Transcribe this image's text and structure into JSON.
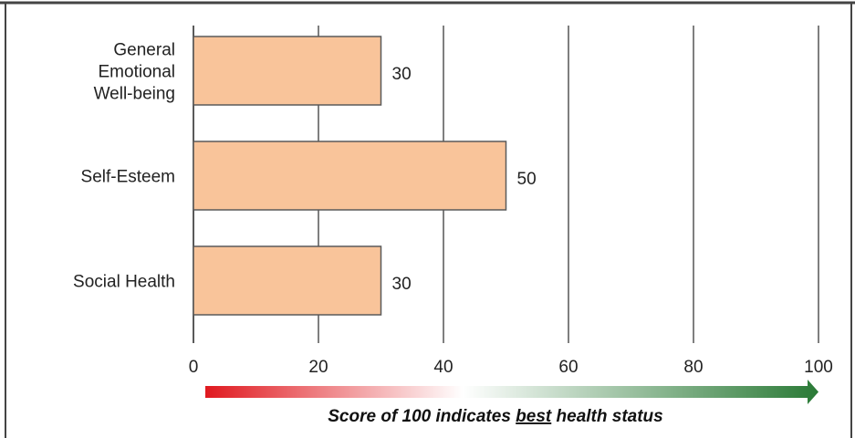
{
  "chart_data": {
    "type": "bar",
    "orientation": "horizontal",
    "categories": [
      [
        "General",
        "Emotional",
        "Well-being"
      ],
      [
        "Self-Esteem"
      ],
      [
        "Social Health"
      ]
    ],
    "values": [
      30,
      50,
      30
    ],
    "data_labels": [
      "30",
      "50",
      "30"
    ],
    "xlim": [
      0,
      100
    ],
    "xticks": [
      0,
      20,
      40,
      60,
      80,
      100
    ],
    "xtick_labels": [
      "0",
      "20",
      "40",
      "60",
      "80",
      "100"
    ],
    "grid": "vertical",
    "bar_color": "#f9c49a",
    "bar_edge_color": "#5a5a5a",
    "grid_color": "#7f7f7f",
    "caption": {
      "before": "Score of 100 indicates ",
      "emphasis": "best",
      "after": " health status"
    },
    "gradient_arrow": {
      "start_color": "#e0191f",
      "mid_color": "#ffffff",
      "end_color": "#2a7a36"
    }
  }
}
